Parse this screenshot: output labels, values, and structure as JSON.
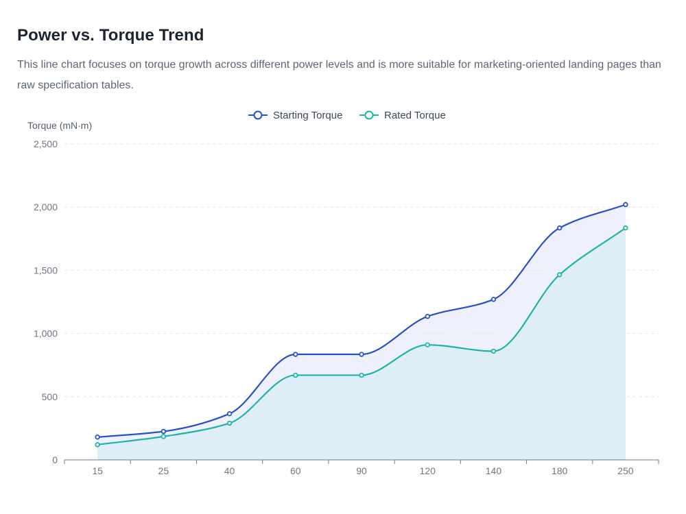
{
  "header": {
    "title": "Power vs. Torque Trend",
    "subtitle": "This line chart focuses on torque growth across different power levels and is more suitable for marketing-oriented landing pages than raw specification tables."
  },
  "chart_data": {
    "type": "line",
    "title": "Power vs. Torque Trend",
    "xlabel": "",
    "ylabel": "Torque (mN·m)",
    "categories": [
      "15",
      "25",
      "40",
      "60",
      "90",
      "120",
      "140",
      "180",
      "250"
    ],
    "ylim": [
      0,
      2500
    ],
    "yticks": [
      0,
      500,
      1000,
      1500,
      2000,
      2500
    ],
    "ytick_labels": [
      "0",
      "500",
      "1,000",
      "1,500",
      "2,000",
      "2,500"
    ],
    "grid": true,
    "smooth": true,
    "legend_position": "top-center",
    "series": [
      {
        "name": "Starting Torque",
        "color": "#2452c4",
        "area_color": "#eef1fb",
        "values": [
          180,
          225,
          365,
          835,
          835,
          1135,
          1270,
          1835,
          2020
        ]
      },
      {
        "name": "Rated Torque",
        "color": "#1fb2a6",
        "area_color": "#deeef6",
        "values": [
          120,
          185,
          290,
          670,
          670,
          910,
          860,
          1465,
          1835
        ]
      }
    ]
  }
}
